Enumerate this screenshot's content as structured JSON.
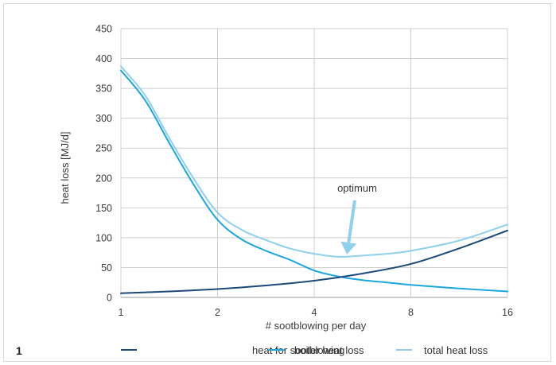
{
  "figure_number": "1",
  "chart_data": {
    "type": "line",
    "title": "",
    "xlabel": "# sootblowing per day",
    "ylabel": "heat loss [MJ/d]",
    "x_scale": "log2",
    "xlim": [
      1,
      16
    ],
    "ylim": [
      0,
      450
    ],
    "x_ticks": [
      1,
      2,
      4,
      8,
      16
    ],
    "y_ticks": [
      0,
      50,
      100,
      150,
      200,
      250,
      300,
      350,
      400,
      450
    ],
    "grid": true,
    "legend_position": "bottom",
    "annotation": {
      "text": "optimum",
      "points_to": {
        "x": 5.0,
        "y": 68
      }
    },
    "series": [
      {
        "name": "heat for sootblowing",
        "color": "#1b4a78",
        "x": [
          1,
          1.41,
          2,
          2.83,
          4,
          5.66,
          8,
          11.3,
          16
        ],
        "y": [
          7,
          10,
          14,
          20,
          28,
          40,
          56,
          82,
          112
        ]
      },
      {
        "name": "boiler heat loss",
        "color": "#1ba6de",
        "x": [
          1,
          1.19,
          1.41,
          1.68,
          2,
          2.38,
          2.83,
          3.36,
          4,
          4.76,
          5.66,
          6.73,
          8,
          11.3,
          16
        ],
        "y": [
          380,
          330,
          260,
          190,
          130,
          97,
          78,
          63,
          45,
          35,
          29,
          25,
          21,
          15,
          10
        ]
      },
      {
        "name": "total heat loss",
        "color": "#8fd0ec",
        "x": [
          1,
          1.19,
          1.41,
          1.68,
          2,
          2.38,
          2.83,
          3.36,
          4,
          4.76,
          5.66,
          6.73,
          8,
          11.3,
          16
        ],
        "y": [
          387,
          338,
          268,
          200,
          142,
          113,
          96,
          82,
          73,
          68,
          70,
          73,
          78,
          95,
          122
        ]
      }
    ]
  }
}
